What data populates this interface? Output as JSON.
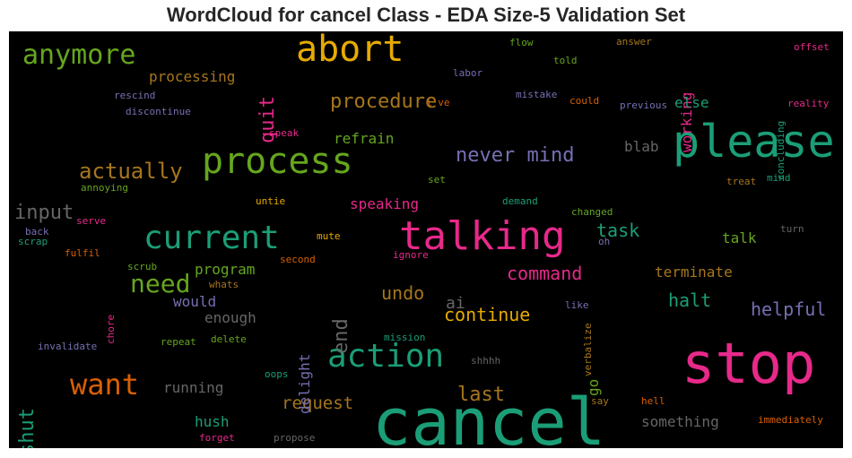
{
  "title": "WordCloud for cancel Class - EDA Size-5 Validation Set",
  "chart_data": {
    "type": "wordcloud",
    "words": [
      {
        "text": "cancel",
        "color": "#1b9e77"
      },
      {
        "text": "stop",
        "color": "#e7298a"
      },
      {
        "text": "please",
        "color": "#1b9e77"
      },
      {
        "text": "talking",
        "color": "#e7298a"
      },
      {
        "text": "process",
        "color": "#66a61e"
      },
      {
        "text": "abort",
        "color": "#e6ab02"
      },
      {
        "text": "current",
        "color": "#1b9e77"
      },
      {
        "text": "action",
        "color": "#1b9e77"
      },
      {
        "text": "anymore",
        "color": "#66a61e"
      },
      {
        "text": "want",
        "color": "#d95f02"
      },
      {
        "text": "need",
        "color": "#66a61e"
      },
      {
        "text": "actually",
        "color": "#a6761d"
      },
      {
        "text": "never mind",
        "color": "#7570b3"
      },
      {
        "text": "input",
        "color": "#666666"
      },
      {
        "text": "procedure",
        "color": "#a6761d"
      },
      {
        "text": "quit",
        "color": "#e7298a"
      },
      {
        "text": "shut",
        "color": "#1b9e77"
      },
      {
        "text": "end",
        "color": "#666666"
      },
      {
        "text": "last",
        "color": "#a6761d"
      },
      {
        "text": "command",
        "color": "#e7298a"
      },
      {
        "text": "continue",
        "color": "#e6ab02"
      },
      {
        "text": "undo",
        "color": "#a6761d"
      },
      {
        "text": "task",
        "color": "#1b9e77"
      },
      {
        "text": "halt",
        "color": "#1b9e77"
      },
      {
        "text": "helpful",
        "color": "#7570b3"
      },
      {
        "text": "request",
        "color": "#a6761d"
      },
      {
        "text": "processing",
        "color": "#a6761d"
      },
      {
        "text": "refrain",
        "color": "#66a61e"
      },
      {
        "text": "speaking",
        "color": "#e7298a"
      },
      {
        "text": "program",
        "color": "#66a61e"
      },
      {
        "text": "terminate",
        "color": "#a6761d"
      },
      {
        "text": "working",
        "color": "#e7298a"
      },
      {
        "text": "delight",
        "color": "#7570b3"
      },
      {
        "text": "running",
        "color": "#666666"
      },
      {
        "text": "ai",
        "color": "#666666"
      },
      {
        "text": "hush",
        "color": "#1b9e77"
      },
      {
        "text": "something",
        "color": "#666666"
      },
      {
        "text": "enough",
        "color": "#666666"
      },
      {
        "text": "would",
        "color": "#7570b3"
      },
      {
        "text": "talk",
        "color": "#66a61e"
      },
      {
        "text": "blab",
        "color": "#666666"
      },
      {
        "text": "else",
        "color": "#1b9e77"
      },
      {
        "text": "go",
        "color": "#66a61e"
      },
      {
        "text": "rescind",
        "color": "#7570b3"
      },
      {
        "text": "discontinue",
        "color": "#7570b3"
      },
      {
        "text": "labor",
        "color": "#7570b3"
      },
      {
        "text": "mistake",
        "color": "#7570b3"
      },
      {
        "text": "could",
        "color": "#d95f02"
      },
      {
        "text": "previous",
        "color": "#7570b3"
      },
      {
        "text": "flow",
        "color": "#66a61e"
      },
      {
        "text": "answer",
        "color": "#a6761d"
      },
      {
        "text": "told",
        "color": "#66a61e"
      },
      {
        "text": "offset",
        "color": "#e7298a"
      },
      {
        "text": "reality",
        "color": "#e7298a"
      },
      {
        "text": "concluding",
        "color": "#1b9e77"
      },
      {
        "text": "i've",
        "color": "#d95f02"
      },
      {
        "text": "speak",
        "color": "#e7298a"
      },
      {
        "text": "set",
        "color": "#66a61e"
      },
      {
        "text": "treat",
        "color": "#a6761d"
      },
      {
        "text": "mind",
        "color": "#1b9e77"
      },
      {
        "text": "annoying",
        "color": "#66a61e"
      },
      {
        "text": "untie",
        "color": "#e6ab02"
      },
      {
        "text": "demand",
        "color": "#1b9e77"
      },
      {
        "text": "changed",
        "color": "#66a61e"
      },
      {
        "text": "serve",
        "color": "#e7298a"
      },
      {
        "text": "back",
        "color": "#7570b3"
      },
      {
        "text": "scrap",
        "color": "#1b9e77"
      },
      {
        "text": "mute",
        "color": "#e6ab02"
      },
      {
        "text": "ignore",
        "color": "#e7298a"
      },
      {
        "text": "oh",
        "color": "#7570b3"
      },
      {
        "text": "turn",
        "color": "#666666"
      },
      {
        "text": "fulfil",
        "color": "#d95f02"
      },
      {
        "text": "second",
        "color": "#d95f02"
      },
      {
        "text": "scrub",
        "color": "#66a61e"
      },
      {
        "text": "whats",
        "color": "#a6761d"
      },
      {
        "text": "chore",
        "color": "#e7298a"
      },
      {
        "text": "like",
        "color": "#7570b3"
      },
      {
        "text": "verbalize",
        "color": "#a6761d"
      },
      {
        "text": "invalidate",
        "color": "#7570b3"
      },
      {
        "text": "repeat",
        "color": "#66a61e"
      },
      {
        "text": "delete",
        "color": "#66a61e"
      },
      {
        "text": "mission",
        "color": "#1b9e77"
      },
      {
        "text": "shhhh",
        "color": "#666666"
      },
      {
        "text": "oops",
        "color": "#1b9e77"
      },
      {
        "text": "say",
        "color": "#a6761d"
      },
      {
        "text": "hell",
        "color": "#d95f02"
      },
      {
        "text": "immediately",
        "color": "#d95f02"
      },
      {
        "text": "forget",
        "color": "#e7298a"
      },
      {
        "text": "propose",
        "color": "#666666"
      }
    ]
  }
}
